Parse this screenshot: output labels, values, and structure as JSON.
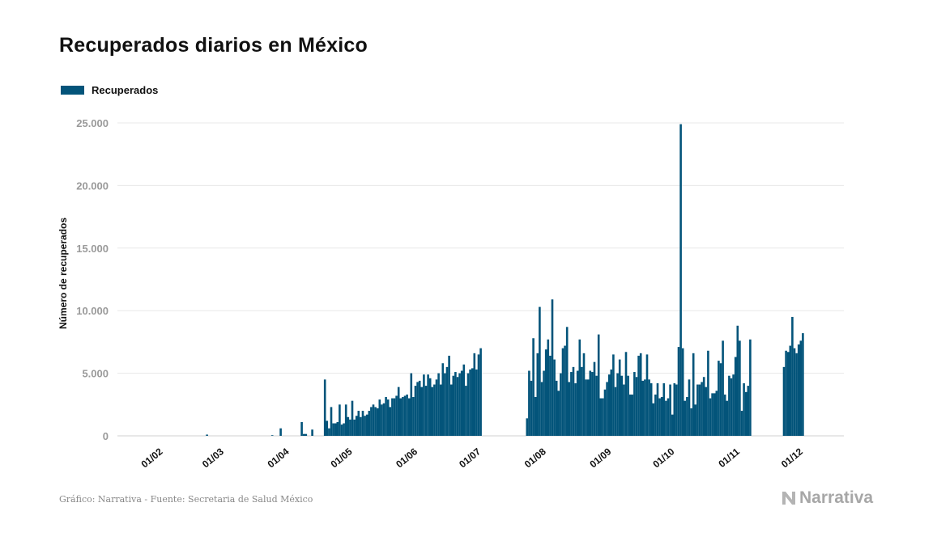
{
  "title": "Recuperados diarios en México",
  "legend": {
    "label": "Recuperados",
    "color": "#03547a"
  },
  "footer": "Gráfico: Narrativa - Fuente: Secretaria de Salud México",
  "logo": {
    "text": "Narrativa"
  },
  "chart_data": {
    "type": "bar",
    "title": "Recuperados diarios en México",
    "xlabel": "",
    "ylabel": "Número de recuperados",
    "x_ticks": [
      "01/02",
      "01/03",
      "01/04",
      "01/05",
      "01/06",
      "01/07",
      "01/08",
      "01/09",
      "01/10",
      "01/11",
      "01/12"
    ],
    "y_ticks": [
      "0",
      "5.000",
      "10.000",
      "15.000",
      "20.000",
      "25.000"
    ],
    "ylim": [
      0,
      25000
    ],
    "grid": true,
    "legend_position": "top-left",
    "series": [
      {
        "name": "Recuperados",
        "color": "#03547a",
        "segments": [
          {
            "start": "2020-02-27",
            "values": [
              100,
              0,
              0,
              0,
              0,
              0,
              0,
              0,
              0,
              0,
              0,
              0,
              0,
              0,
              0,
              0,
              0,
              0,
              0,
              0,
              0,
              0,
              0,
              0,
              0,
              0,
              0,
              0,
              0,
              0,
              0,
              0,
              0,
              0,
              0,
              0,
              0,
              0,
              0,
              0,
              0,
              0,
              0,
              0,
              0,
              0,
              0,
              0,
              0,
              0,
              0,
              0,
              0,
              0,
              0,
              0,
              0,
              0,
              0,
              0,
              0,
              0,
              0,
              0,
              0,
              0,
              0,
              0,
              0,
              0,
              0,
              0,
              0,
              0,
              0,
              0,
              0,
              0,
              0,
              0,
              0,
              0
            ]
          },
          {
            "start": "2020-03-29",
            "values": [
              50,
              0,
              0,
              0,
              600,
              0,
              0,
              0,
              0,
              0,
              0,
              0,
              0,
              0,
              1100,
              150,
              150,
              0,
              0,
              500,
              0,
              0,
              0,
              0,
              0,
              4500,
              1200,
              600,
              2300,
              1000,
              1000,
              1100,
              2500,
              900,
              1000,
              2500,
              1500,
              1300,
              2800,
              1300,
              1600,
              2000,
              1500,
              2000,
              1600,
              1700,
              2000,
              2300,
              2500,
              2300,
              2200,
              2900,
              2500,
              2600,
              3100,
              2900,
              2300,
              3000,
              3000,
              3200,
              3900,
              3000,
              3100,
              3200,
              3300,
              3000,
              5000,
              3100,
              4000,
              4300,
              4400,
              3900,
              4900,
              4000,
              4900,
              4600,
              3900,
              4100,
              4500,
              5000,
              4100,
              5800,
              5000,
              5500,
              6400,
              4100,
              4800,
              5100,
              4700,
              5000,
              5200,
              5700,
              4000,
              5000,
              5300,
              5400,
              6600,
              5300,
              6500,
              7000
            ]
          },
          {
            "start": "2020-07-28",
            "values": [
              1400,
              5200,
              4400,
              7800,
              3100,
              6600,
              10300
            ]
          },
          {
            "start": "2020-08-04",
            "values": [
              4300,
              5200,
              6900,
              7700,
              6400,
              10900,
              6100,
              4400,
              3600,
              5000,
              7000,
              7200,
              8700,
              4300,
              5100,
              5500,
              4200,
              5200,
              7700,
              5500,
              6600,
              4500,
              4500,
              5200,
              5100,
              5900,
              4800,
              8100,
              3000,
              3000,
              3700,
              4300,
              4900,
              5300,
              6500,
              3900,
              5000,
              6100,
              4800,
              4100,
              6700,
              4800,
              3300,
              3300,
              5100,
              4700,
              6400,
              6600,
              4400,
              4500,
              6500,
              4500,
              4200,
              2600,
              3300,
              4200,
              3000,
              3100,
              4200,
              2800,
              3000,
              4100,
              1700,
              4200,
              4100,
              7100,
              24900,
              7000,
              2800,
              3100,
              4500,
              2200,
              6600,
              2500,
              4100,
              4100,
              4300,
              4700,
              3900,
              6800,
              3000,
              3400,
              3400,
              3600,
              6000,
              5800,
              7600,
              3300,
              2800,
              4800,
              4600,
              4900,
              6300,
              8800,
              7600,
              2000,
              4200,
              3500,
              4000,
              7700
            ]
          },
          {
            "start": "2020-11-27",
            "values": [
              5500,
              6800,
              6700,
              7200,
              9500,
              7000,
              6600,
              7300,
              7600,
              8200
            ]
          }
        ]
      }
    ]
  }
}
